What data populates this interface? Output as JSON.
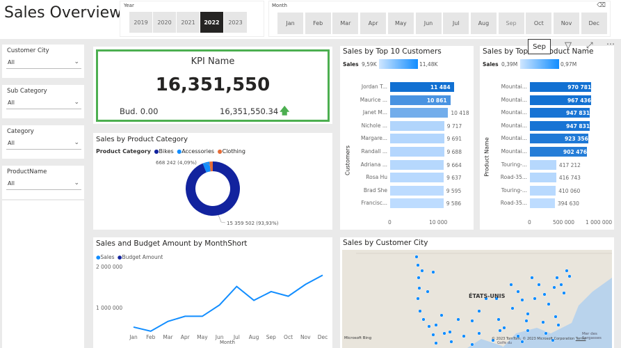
{
  "page": {
    "title": "Sales Overview"
  },
  "year_slicer": {
    "label": "Year",
    "options": [
      "2019",
      "2020",
      "2021",
      "2022",
      "2023"
    ],
    "selected": "2022"
  },
  "month_slicer": {
    "label": "Month",
    "options": [
      "Jan",
      "Feb",
      "Mar",
      "Apr",
      "May",
      "Jun",
      "Jul",
      "Aug",
      "Sep",
      "Oct",
      "Nov",
      "Dec"
    ]
  },
  "filters": [
    {
      "label": "Customer City",
      "value": "All"
    },
    {
      "label": "Sub Category",
      "value": "All"
    },
    {
      "label": "Category",
      "value": "All"
    },
    {
      "label": "ProductName",
      "value": "All"
    }
  ],
  "kpi": {
    "name": "KPI Name",
    "value": "16,351,550",
    "budget_label": "Bud. 0.00",
    "actual": "16,351,550.34",
    "border_color": "#4caf50",
    "arrow_color": "#4caf50"
  },
  "pie": {
    "title": "Sales by Product Category",
    "legend_title": "Product Category",
    "legend": [
      {
        "name": "Bikes",
        "color": "#12239e"
      },
      {
        "name": "Accessories",
        "color": "#118dff"
      },
      {
        "name": "Clothing",
        "color": "#e66c37"
      }
    ],
    "label_small": "668 242 (4,09%)",
    "label_big": "15 359 502 (93,93%)"
  },
  "customers": {
    "title": "Sales by Top 10 Customers",
    "legend_label": "Sales",
    "legend_min": "9,59K",
    "legend_max": "11,48K",
    "axis_title": "Customers",
    "x_ticks": [
      "0",
      "10 000"
    ],
    "rows": [
      {
        "name": "Jordan T...",
        "label": "11 484"
      },
      {
        "name": "Maurice ...",
        "label": "10 861"
      },
      {
        "name": "Janet M...",
        "label": "10 418"
      },
      {
        "name": "Nichole ...",
        "label": "9 717"
      },
      {
        "name": "Margare...",
        "label": "9 691"
      },
      {
        "name": "Randall ...",
        "label": "9 688"
      },
      {
        "name": "Adriana ...",
        "label": "9 664"
      },
      {
        "name": "Rosa Hu",
        "label": "9 637"
      },
      {
        "name": "Brad She",
        "label": "9 595"
      },
      {
        "name": "Francisc...",
        "label": "9 586"
      }
    ]
  },
  "products": {
    "title": "Sales by Top 10 Product Name",
    "legend_label": "Sales",
    "legend_min": "0,39M",
    "legend_max": "0,97M",
    "axis_title": "Product Name",
    "x_ticks": [
      "0",
      "500 000",
      "1 000 000"
    ],
    "rows": [
      {
        "name": "Mountai...",
        "label": "970 781"
      },
      {
        "name": "Mountai...",
        "label": "967 436"
      },
      {
        "name": "Mountai...",
        "label": "947 831"
      },
      {
        "name": "Mountai...",
        "label": "947 831"
      },
      {
        "name": "Mountai...",
        "label": "923 356"
      },
      {
        "name": "Mountai...",
        "label": "902 476"
      },
      {
        "name": "Touring-...",
        "label": "417 212"
      },
      {
        "name": "Road-35...",
        "label": "416 743"
      },
      {
        "name": "Touring-...",
        "label": "410 060"
      },
      {
        "name": "Road-35...",
        "label": "394 630"
      }
    ]
  },
  "tooltip": {
    "text": "Sep"
  },
  "line": {
    "title": "Sales and Budget Amount by MonthShort",
    "legend": [
      {
        "name": "Sales",
        "color": "#118dff"
      },
      {
        "name": "Budget Amount",
        "color": "#12239e"
      }
    ],
    "y_ticks": [
      "2 000 000",
      "1 000 000"
    ],
    "x_title": "Month"
  },
  "map": {
    "title": "Sales by Customer City",
    "country_label": "ÉTATS-UNIS",
    "sea_label": "Mer des Sargasses",
    "brand": "Microsoft Bing",
    "copyright": "© 2023 TomTom, © 2023 Microsoft Corporation",
    "terms": "Terms",
    "cut_label": "Golfe du"
  },
  "chart_data": [
    {
      "type": "pie",
      "title": "Sales by Product Category",
      "categories": [
        "Bikes",
        "Accessories",
        "Clothing"
      ],
      "values": [
        15359502,
        668242,
        323806
      ],
      "percent": [
        93.93,
        4.09,
        1.98
      ]
    },
    {
      "type": "bar",
      "title": "Sales by Top 10 Customers",
      "ylabel": "Customers",
      "categories": [
        "Jordan T...",
        "Maurice ...",
        "Janet M...",
        "Nichole ...",
        "Margare...",
        "Randall ...",
        "Adriana ...",
        "Rosa Hu",
        "Brad She",
        "Francisc..."
      ],
      "values": [
        11484,
        10861,
        10418,
        9717,
        9691,
        9688,
        9664,
        9637,
        9595,
        9586
      ],
      "xlim": [
        0,
        13000
      ]
    },
    {
      "type": "bar",
      "title": "Sales by Top 10 Product Name",
      "ylabel": "Product Name",
      "categories": [
        "Mountai...",
        "Mountai...",
        "Mountai...",
        "Mountai...",
        "Mountai...",
        "Mountai...",
        "Touring-...",
        "Road-35...",
        "Touring-...",
        "Road-35..."
      ],
      "values": [
        970781,
        967436,
        947831,
        947831,
        923356,
        902476,
        417212,
        416743,
        410060,
        394630
      ],
      "xlim": [
        0,
        1100000
      ]
    },
    {
      "type": "line",
      "title": "Sales and Budget Amount by MonthShort",
      "xlabel": "Month",
      "categories": [
        "Jan",
        "Feb",
        "Mar",
        "Apr",
        "May",
        "Jun",
        "Jul",
        "Aug",
        "Sep",
        "Oct",
        "Nov",
        "Dec"
      ],
      "series": [
        {
          "name": "Sales",
          "values": [
            850000,
            770000,
            960000,
            1060000,
            1060000,
            1280000,
            1640000,
            1370000,
            1540000,
            1450000,
            1680000,
            1860000
          ]
        }
      ],
      "ylim": [
        700000,
        2000000
      ],
      "y_ticks": [
        1000000,
        2000000
      ]
    }
  ]
}
